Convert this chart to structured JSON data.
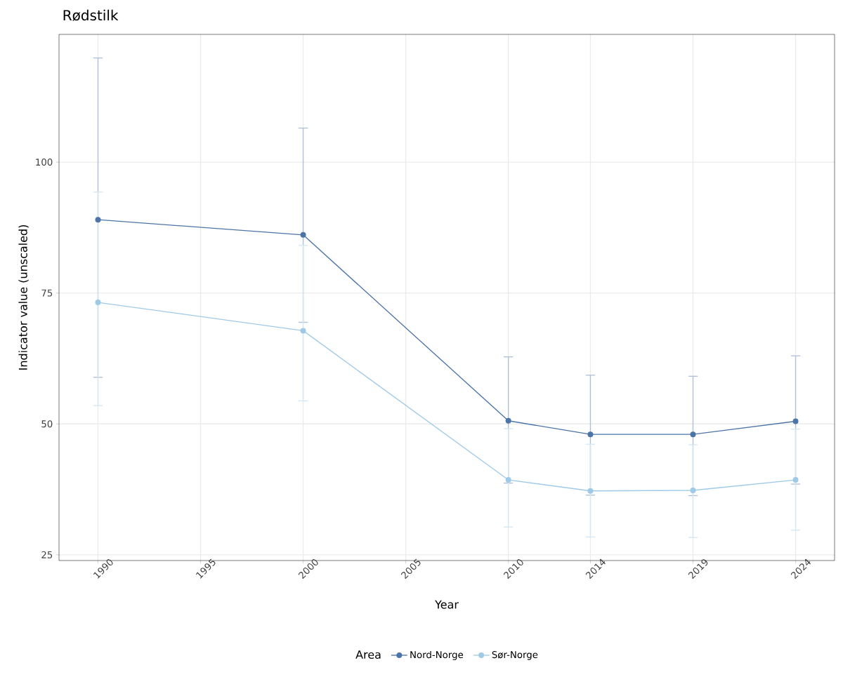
{
  "chart_data": {
    "type": "line",
    "title": "Rødstilk",
    "xlabel": "Year",
    "ylabel": "Indicator value (unscaled)",
    "legend_title": "Area",
    "x": [
      1990,
      2000,
      2010,
      2014,
      2019,
      2024
    ],
    "xlim": [
      1988.1,
      2025.9
    ],
    "xticks": [
      1990,
      1995,
      2000,
      2005,
      2010,
      2014,
      2019,
      2024
    ],
    "ylim": [
      23.9,
      124.4
    ],
    "yticks": [
      25,
      50,
      75,
      100
    ],
    "grid": true,
    "legend": "bottom",
    "marker": "circle",
    "line_style": "solid",
    "series": [
      {
        "name": "Nord-Norge",
        "color": "#4b74a8",
        "values": [
          89.0,
          86.1,
          50.6,
          48.0,
          48.0,
          50.5
        ],
        "errors": [
          [
            58.9,
            119.9
          ],
          [
            69.4,
            106.5
          ],
          [
            38.7,
            62.8
          ],
          [
            36.4,
            59.3
          ],
          [
            36.3,
            59.1
          ],
          [
            38.5,
            63.0
          ]
        ]
      },
      {
        "name": "Sør-Norge",
        "color": "#9ecae8",
        "values": [
          73.2,
          67.8,
          39.3,
          37.2,
          37.3,
          39.3
        ],
        "errors": [
          [
            53.5,
            94.3
          ],
          [
            54.4,
            84.1
          ],
          [
            30.3,
            49.1
          ],
          [
            28.4,
            46.1
          ],
          [
            28.3,
            46.0
          ],
          [
            29.7,
            49.0
          ]
        ]
      }
    ]
  }
}
